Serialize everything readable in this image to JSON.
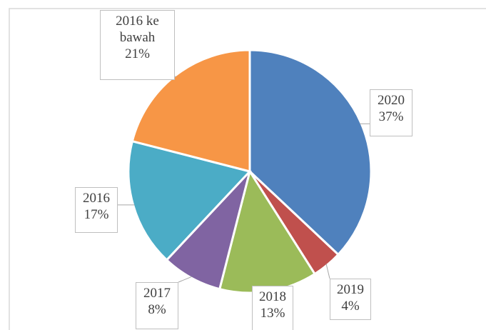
{
  "chart_data": {
    "type": "pie",
    "categories": [
      "2020",
      "2019",
      "2018",
      "2017",
      "2016",
      "2016 ke bawah"
    ],
    "values": [
      37,
      4,
      13,
      8,
      17,
      21
    ],
    "value_labels": [
      "37%",
      "4%",
      "13%",
      "8%",
      "17%",
      "21%"
    ],
    "colors": [
      "#4f81bd",
      "#c0504d",
      "#9bbb59",
      "#8064a2",
      "#4bacc6",
      "#f79646"
    ]
  }
}
